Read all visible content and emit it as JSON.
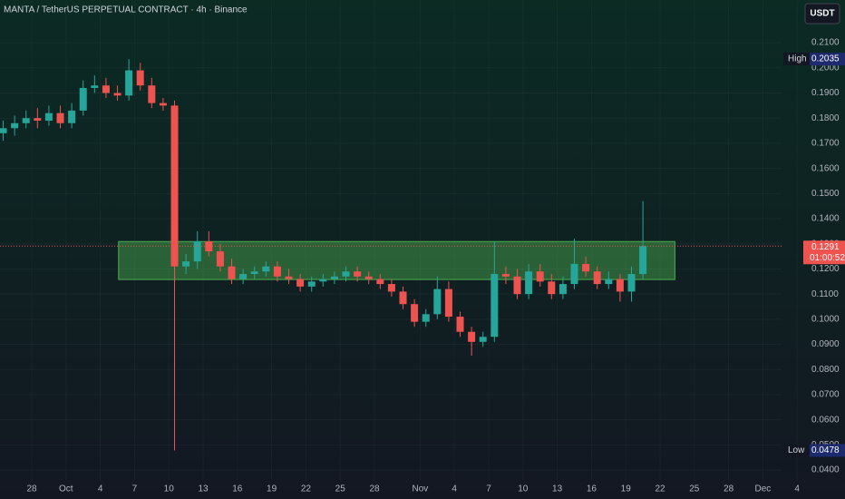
{
  "chart_data": {
    "type": "candlestick",
    "title": "MANTA / TetherUS PERPETUAL CONTRACT · 4h · Binance",
    "currency": "USDT",
    "up_color": "#26a69a",
    "down_color": "#ef5350",
    "grid": true,
    "xlim": [
      -2.78,
      71.19
    ],
    "ylim": [
      0.0357,
      0.227
    ],
    "xticks": [
      {
        "value": 0,
        "label": "28"
      },
      {
        "value": 3,
        "label": "Oct"
      },
      {
        "value": 6,
        "label": "4"
      },
      {
        "value": 9,
        "label": "7"
      },
      {
        "value": 12,
        "label": "10"
      },
      {
        "value": 15,
        "label": "13"
      },
      {
        "value": 18,
        "label": "16"
      },
      {
        "value": 21,
        "label": "19"
      },
      {
        "value": 24,
        "label": "22"
      },
      {
        "value": 27,
        "label": "25"
      },
      {
        "value": 30,
        "label": "28"
      },
      {
        "value": 34,
        "label": "Nov"
      },
      {
        "value": 37,
        "label": "4"
      },
      {
        "value": 40,
        "label": "7"
      },
      {
        "value": 43,
        "label": "10"
      },
      {
        "value": 46,
        "label": "13"
      },
      {
        "value": 49,
        "label": "16"
      },
      {
        "value": 52,
        "label": "19"
      },
      {
        "value": 55,
        "label": "22"
      },
      {
        "value": 58,
        "label": "25"
      },
      {
        "value": 61,
        "label": "28"
      },
      {
        "value": 64,
        "label": "Dec"
      },
      {
        "value": 67,
        "label": "4"
      }
    ],
    "yticks": [
      {
        "value": 0.21,
        "label": "0.2100"
      },
      {
        "value": 0.2,
        "label": "0.2000"
      },
      {
        "value": 0.19,
        "label": "0.1900"
      },
      {
        "value": 0.18,
        "label": "0.1800"
      },
      {
        "value": 0.17,
        "label": "0.1700"
      },
      {
        "value": 0.16,
        "label": "0.1600"
      },
      {
        "value": 0.15,
        "label": "0.1500"
      },
      {
        "value": 0.14,
        "label": "0.1400"
      },
      {
        "value": 0.13,
        "label": "0.1300"
      },
      {
        "value": 0.12,
        "label": "0.1200"
      },
      {
        "value": 0.11,
        "label": "0.1100"
      },
      {
        "value": 0.1,
        "label": "0.1000"
      },
      {
        "value": 0.09,
        "label": "0.0900"
      },
      {
        "value": 0.08,
        "label": "0.0800"
      },
      {
        "value": 0.07,
        "label": "0.0700"
      },
      {
        "value": 0.06,
        "label": "0.0600"
      },
      {
        "value": 0.05,
        "label": "0.0500"
      },
      {
        "value": 0.04,
        "label": "0.0400"
      }
    ],
    "x": [
      -2.5,
      -1.5,
      -0.5,
      0.5,
      1.5,
      2.5,
      3.5,
      4.5,
      5.5,
      6.5,
      7.5,
      8.5,
      9.5,
      10.5,
      11.5,
      12.5,
      13.5,
      14.5,
      15.5,
      16.5,
      17.5,
      18.5,
      19.5,
      20.5,
      21.5,
      22.5,
      23.5,
      24.5,
      25.5,
      26.5,
      27.5,
      28.5,
      29.5,
      30.5,
      31.5,
      32.5,
      33.5,
      34.5,
      35.5,
      36.5,
      37.5,
      38.5,
      39.5,
      40.5,
      41.5,
      42.5,
      43.5,
      44.5,
      45.5,
      46.5,
      47.5,
      48.5,
      49.5,
      50.5,
      51.5,
      52.5,
      53.5
    ],
    "open": [
      0.174,
      0.176,
      0.178,
      0.18,
      0.179,
      0.182,
      0.178,
      0.183,
      0.192,
      0.193,
      0.19,
      0.189,
      0.199,
      0.193,
      0.186,
      0.185,
      0.121,
      0.123,
      0.131,
      0.127,
      0.121,
      0.116,
      0.118,
      0.119,
      0.121,
      0.117,
      0.116,
      0.113,
      0.115,
      0.116,
      0.117,
      0.119,
      0.117,
      0.116,
      0.114,
      0.111,
      0.106,
      0.099,
      0.102,
      0.112,
      0.101,
      0.095,
      0.091,
      0.093,
      0.118,
      0.117,
      0.11,
      0.119,
      0.115,
      0.11,
      0.114,
      0.122,
      0.119,
      0.114,
      0.116,
      0.111,
      0.118
    ],
    "high": [
      0.179,
      0.181,
      0.183,
      0.184,
      0.185,
      0.185,
      0.186,
      0.195,
      0.197,
      0.196,
      0.193,
      0.2035,
      0.202,
      0.196,
      0.188,
      0.187,
      0.126,
      0.135,
      0.135,
      0.13,
      0.124,
      0.12,
      0.121,
      0.123,
      0.123,
      0.12,
      0.118,
      0.117,
      0.118,
      0.119,
      0.121,
      0.121,
      0.119,
      0.118,
      0.116,
      0.113,
      0.108,
      0.104,
      0.117,
      0.115,
      0.103,
      0.097,
      0.095,
      0.131,
      0.121,
      0.12,
      0.122,
      0.122,
      0.118,
      0.117,
      0.132,
      0.125,
      0.121,
      0.119,
      0.118,
      0.121,
      0.147
    ],
    "low": [
      0.171,
      0.173,
      0.176,
      0.176,
      0.177,
      0.176,
      0.176,
      0.181,
      0.19,
      0.188,
      0.187,
      0.187,
      0.191,
      0.184,
      0.183,
      0.0478,
      0.118,
      0.12,
      0.125,
      0.119,
      0.114,
      0.114,
      0.116,
      0.117,
      0.115,
      0.114,
      0.111,
      0.111,
      0.113,
      0.114,
      0.115,
      0.115,
      0.114,
      0.112,
      0.109,
      0.104,
      0.097,
      0.097,
      0.1,
      0.099,
      0.093,
      0.0855,
      0.089,
      0.091,
      0.114,
      0.108,
      0.108,
      0.113,
      0.108,
      0.108,
      0.112,
      0.117,
      0.112,
      0.112,
      0.107,
      0.107,
      0.116
    ],
    "close": [
      0.176,
      0.178,
      0.18,
      0.179,
      0.182,
      0.178,
      0.183,
      0.192,
      0.193,
      0.19,
      0.189,
      0.199,
      0.193,
      0.186,
      0.185,
      0.121,
      0.123,
      0.131,
      0.127,
      0.121,
      0.116,
      0.118,
      0.119,
      0.121,
      0.117,
      0.116,
      0.113,
      0.115,
      0.116,
      0.117,
      0.119,
      0.117,
      0.116,
      0.114,
      0.111,
      0.106,
      0.099,
      0.102,
      0.112,
      0.101,
      0.095,
      0.091,
      0.093,
      0.118,
      0.117,
      0.11,
      0.119,
      0.115,
      0.11,
      0.114,
      0.122,
      0.119,
      0.114,
      0.116,
      0.111,
      0.118,
      0.1291
    ],
    "zone": {
      "x": [
        7.6,
        56.3
      ],
      "y": [
        0.1158,
        0.1309
      ],
      "color": "#4caf50"
    },
    "high_marker": {
      "label": "High",
      "value": 0.2035
    },
    "low_marker": {
      "label": "Low",
      "value": 0.0478
    },
    "last_price": {
      "value": 0.1291,
      "countdown": "01:00:52"
    }
  }
}
